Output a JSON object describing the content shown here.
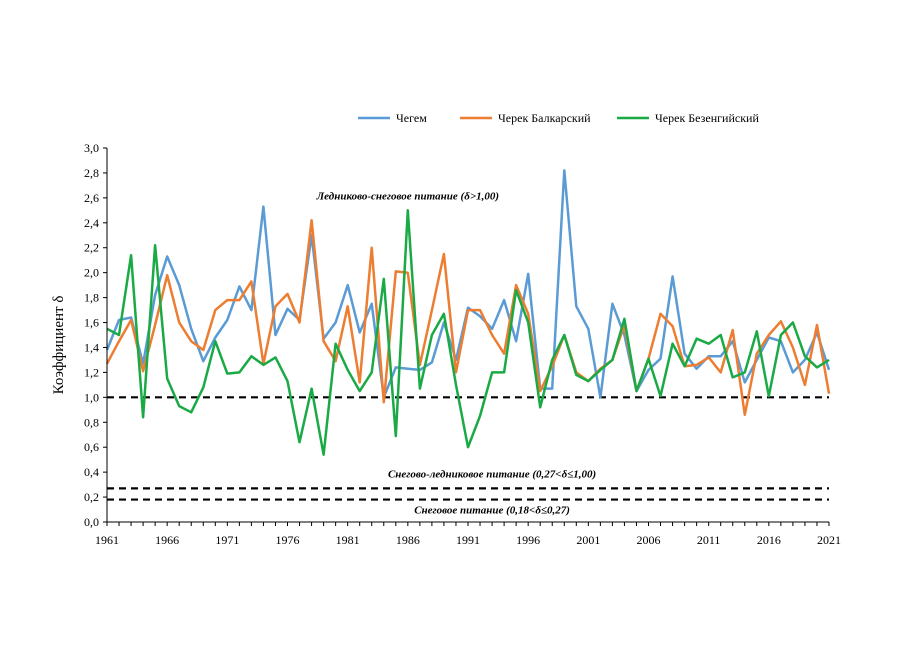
{
  "chart_data": {
    "type": "line",
    "title": "",
    "xlabel": "",
    "ylabel": "Коэффициент  δ",
    "ylim": [
      0,
      3.0
    ],
    "xlim": [
      1961,
      2021
    ],
    "yticks": [
      "0,0",
      "0,2",
      "0,4",
      "0,6",
      "0,8",
      "1,0",
      "1,2",
      "1,4",
      "1,6",
      "1,8",
      "2,0",
      "2,2",
      "2,4",
      "2,6",
      "2,8",
      "3,0"
    ],
    "xticks": [
      "1961",
      "1966",
      "1971",
      "1976",
      "1981",
      "1986",
      "1991",
      "1996",
      "2001",
      "2006",
      "2011",
      "2016",
      "2021"
    ],
    "x": [
      1961,
      1962,
      1963,
      1964,
      1965,
      1966,
      1967,
      1968,
      1969,
      1970,
      1971,
      1972,
      1973,
      1974,
      1975,
      1976,
      1977,
      1978,
      1979,
      1980,
      1981,
      1982,
      1983,
      1984,
      1985,
      1986,
      1987,
      1988,
      1989,
      1990,
      1991,
      1992,
      1993,
      1994,
      1995,
      1996,
      1997,
      1998,
      1999,
      2000,
      2001,
      2002,
      2003,
      2004,
      2005,
      2006,
      2007,
      2008,
      2009,
      2010,
      2011,
      2012,
      2013,
      2014,
      2015,
      2016,
      2017,
      2018,
      2019,
      2020,
      2021
    ],
    "legend_position": "top",
    "series": [
      {
        "name": "Чегем",
        "color": "#5b9bd5",
        "values": [
          1.38,
          1.62,
          1.64,
          1.27,
          1.82,
          2.13,
          1.9,
          1.55,
          1.29,
          1.48,
          1.62,
          1.89,
          1.7,
          2.53,
          1.5,
          1.71,
          1.62,
          2.3,
          1.47,
          1.6,
          1.9,
          1.52,
          1.75,
          1.0,
          1.24,
          1.23,
          1.22,
          1.28,
          1.6,
          1.3,
          1.72,
          1.65,
          1.55,
          1.78,
          1.45,
          1.99,
          1.07,
          1.07,
          2.82,
          1.73,
          1.55,
          1.0,
          1.75,
          1.5,
          1.05,
          1.22,
          1.31,
          1.97,
          1.35,
          1.23,
          1.33,
          1.33,
          1.45,
          1.12,
          1.3,
          1.48,
          1.45,
          1.2,
          1.3,
          1.52,
          1.22
        ]
      },
      {
        "name": "Черек Балкарский",
        "color": "#ed7d31",
        "values": [
          1.27,
          1.45,
          1.62,
          1.21,
          1.58,
          1.98,
          1.6,
          1.45,
          1.38,
          1.7,
          1.78,
          1.78,
          1.93,
          1.27,
          1.73,
          1.83,
          1.6,
          2.42,
          1.45,
          1.29,
          1.73,
          1.12,
          2.2,
          0.96,
          2.01,
          2.0,
          1.26,
          1.7,
          2.15,
          1.2,
          1.7,
          1.7,
          1.5,
          1.35,
          1.9,
          1.67,
          1.05,
          1.25,
          1.5,
          1.2,
          1.13,
          1.23,
          1.3,
          1.58,
          1.05,
          1.31,
          1.67,
          1.57,
          1.25,
          1.26,
          1.32,
          1.2,
          1.54,
          0.86,
          1.35,
          1.5,
          1.61,
          1.4,
          1.1,
          1.58,
          1.03
        ]
      },
      {
        "name": "Черек Безенгийский",
        "color": "#1aaa45",
        "values": [
          1.55,
          1.5,
          2.14,
          0.84,
          2.22,
          1.15,
          0.93,
          0.88,
          1.08,
          1.45,
          1.19,
          1.2,
          1.33,
          1.26,
          1.32,
          1.13,
          0.64,
          1.07,
          0.54,
          1.43,
          1.22,
          1.05,
          1.2,
          1.95,
          0.69,
          2.5,
          1.07,
          1.5,
          1.67,
          1.1,
          0.6,
          0.85,
          1.2,
          1.2,
          1.86,
          1.6,
          0.92,
          1.3,
          1.5,
          1.18,
          1.13,
          1.22,
          1.3,
          1.63,
          1.05,
          1.31,
          1.01,
          1.43,
          1.25,
          1.47,
          1.43,
          1.5,
          1.16,
          1.2,
          1.53,
          1.01,
          1.5,
          1.6,
          1.33,
          1.24,
          1.3
        ]
      }
    ],
    "reference_lines": [
      {
        "y": 1.0,
        "style": "dashed"
      },
      {
        "y": 0.27,
        "style": "dashed"
      },
      {
        "y": 0.18,
        "style": "dashed"
      }
    ],
    "annotations": [
      {
        "text": "Ледниково-снеговое питание (δ>1,00)",
        "x": 1986,
        "y": 2.62
      },
      {
        "text": "Снегово-ледниковое питание (0,27<δ≤1,00)",
        "x": 1993,
        "y": 0.39
      },
      {
        "text": "Снеговое питание (0,18<δ≤0,27)",
        "x": 1993,
        "y": 0.1
      }
    ]
  }
}
